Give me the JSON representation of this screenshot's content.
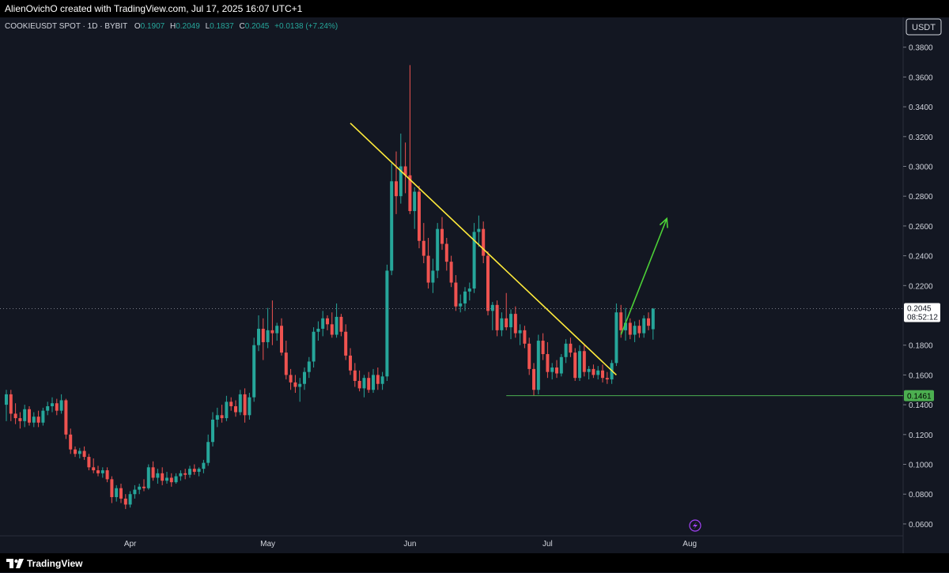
{
  "header": {
    "attribution": "AlienOvichO created with TradingView.com, Jul 17, 2025 16:07 UTC+1"
  },
  "legend": {
    "symbol": "COOKIEUSDT SPOT · 1D · BYBIT",
    "o_label": "O",
    "o_value": "0.1907",
    "h_label": "H",
    "h_value": "0.2049",
    "l_label": "L",
    "l_value": "0.1837",
    "c_label": "C",
    "c_value": "0.2045",
    "change": "+0.0138 (+7.24%)"
  },
  "currency_button": "USDT",
  "footer": {
    "brand": "TradingView"
  },
  "colors": {
    "up": "#26a69a",
    "down": "#ef5350",
    "trendline": "#ffeb3b",
    "support": "#4caf50",
    "arrow": "#4cd137",
    "background": "#131722",
    "text": "#d1d4dc"
  },
  "icons": {
    "flash": "lightning-icon",
    "logo": "tradingview-logo-icon"
  },
  "chart_data": {
    "type": "candlestick",
    "ylim": [
      0.052,
      0.4
    ],
    "yticks": [
      "0.3800",
      "0.3600",
      "0.3400",
      "0.3200",
      "0.3000",
      "0.2800",
      "0.2600",
      "0.2400",
      "0.2200",
      "0.1800",
      "0.1600",
      "0.1400",
      "0.1200",
      "0.1000",
      "0.0800",
      "0.0600"
    ],
    "xticks": [
      {
        "label": "Apr",
        "date": "2025-04-01"
      },
      {
        "label": "May",
        "date": "2025-05-01"
      },
      {
        "label": "Jun",
        "date": "2025-06-01"
      },
      {
        "label": "Jul",
        "date": "2025-07-01"
      },
      {
        "label": "Aug",
        "date": "2025-08-01"
      }
    ],
    "last_price": {
      "value": 0.2045,
      "label": "0.2045",
      "countdown": "08:52:12"
    },
    "support": {
      "value": 0.1461,
      "label": "0.1461",
      "from_date": "2025-06-22"
    },
    "trendline": {
      "from": {
        "date": "2025-05-19",
        "price": 0.329
      },
      "to": {
        "date": "2025-07-16",
        "price": 0.16
      }
    },
    "projection_arrow": {
      "from": {
        "date": "2025-07-17",
        "price": 0.187
      },
      "to": {
        "date": "2025-07-27",
        "price": 0.265
      }
    },
    "candles": [
      {
        "date": "2025-03-05",
        "o": 0.14,
        "h": 0.15,
        "l": 0.129,
        "c": 0.147
      },
      {
        "date": "2025-03-06",
        "o": 0.147,
        "h": 0.15,
        "l": 0.129,
        "c": 0.134
      },
      {
        "date": "2025-03-07",
        "o": 0.134,
        "h": 0.141,
        "l": 0.127,
        "c": 0.131
      },
      {
        "date": "2025-03-08",
        "o": 0.131,
        "h": 0.135,
        "l": 0.124,
        "c": 0.129
      },
      {
        "date": "2025-03-09",
        "o": 0.129,
        "h": 0.14,
        "l": 0.125,
        "c": 0.137
      },
      {
        "date": "2025-03-10",
        "o": 0.137,
        "h": 0.139,
        "l": 0.126,
        "c": 0.128
      },
      {
        "date": "2025-03-11",
        "o": 0.128,
        "h": 0.135,
        "l": 0.125,
        "c": 0.132
      },
      {
        "date": "2025-03-12",
        "o": 0.132,
        "h": 0.136,
        "l": 0.125,
        "c": 0.128
      },
      {
        "date": "2025-03-13",
        "o": 0.128,
        "h": 0.138,
        "l": 0.126,
        "c": 0.136
      },
      {
        "date": "2025-03-14",
        "o": 0.136,
        "h": 0.142,
        "l": 0.133,
        "c": 0.139
      },
      {
        "date": "2025-03-15",
        "o": 0.139,
        "h": 0.145,
        "l": 0.135,
        "c": 0.141
      },
      {
        "date": "2025-03-16",
        "o": 0.141,
        "h": 0.144,
        "l": 0.133,
        "c": 0.136
      },
      {
        "date": "2025-03-17",
        "o": 0.136,
        "h": 0.147,
        "l": 0.134,
        "c": 0.143
      },
      {
        "date": "2025-03-18",
        "o": 0.143,
        "h": 0.144,
        "l": 0.117,
        "c": 0.12
      },
      {
        "date": "2025-03-19",
        "o": 0.12,
        "h": 0.124,
        "l": 0.107,
        "c": 0.11
      },
      {
        "date": "2025-03-20",
        "o": 0.11,
        "h": 0.112,
        "l": 0.105,
        "c": 0.107
      },
      {
        "date": "2025-03-21",
        "o": 0.107,
        "h": 0.111,
        "l": 0.104,
        "c": 0.109
      },
      {
        "date": "2025-03-22",
        "o": 0.109,
        "h": 0.112,
        "l": 0.103,
        "c": 0.105
      },
      {
        "date": "2025-03-23",
        "o": 0.105,
        "h": 0.107,
        "l": 0.096,
        "c": 0.098
      },
      {
        "date": "2025-03-24",
        "o": 0.098,
        "h": 0.104,
        "l": 0.094,
        "c": 0.096
      },
      {
        "date": "2025-03-25",
        "o": 0.096,
        "h": 0.099,
        "l": 0.092,
        "c": 0.094
      },
      {
        "date": "2025-03-26",
        "o": 0.094,
        "h": 0.098,
        "l": 0.091,
        "c": 0.096
      },
      {
        "date": "2025-03-27",
        "o": 0.096,
        "h": 0.098,
        "l": 0.088,
        "c": 0.09
      },
      {
        "date": "2025-03-28",
        "o": 0.09,
        "h": 0.092,
        "l": 0.074,
        "c": 0.078
      },
      {
        "date": "2025-03-29",
        "o": 0.078,
        "h": 0.086,
        "l": 0.075,
        "c": 0.084
      },
      {
        "date": "2025-03-30",
        "o": 0.084,
        "h": 0.087,
        "l": 0.074,
        "c": 0.077
      },
      {
        "date": "2025-03-31",
        "o": 0.077,
        "h": 0.08,
        "l": 0.07,
        "c": 0.073
      },
      {
        "date": "2025-04-01",
        "o": 0.073,
        "h": 0.082,
        "l": 0.071,
        "c": 0.08
      },
      {
        "date": "2025-04-02",
        "o": 0.08,
        "h": 0.086,
        "l": 0.077,
        "c": 0.083
      },
      {
        "date": "2025-04-03",
        "o": 0.083,
        "h": 0.087,
        "l": 0.08,
        "c": 0.085
      },
      {
        "date": "2025-04-04",
        "o": 0.085,
        "h": 0.09,
        "l": 0.082,
        "c": 0.084
      },
      {
        "date": "2025-04-05",
        "o": 0.084,
        "h": 0.1,
        "l": 0.083,
        "c": 0.098
      },
      {
        "date": "2025-04-06",
        "o": 0.098,
        "h": 0.102,
        "l": 0.089,
        "c": 0.091
      },
      {
        "date": "2025-04-07",
        "o": 0.091,
        "h": 0.097,
        "l": 0.087,
        "c": 0.094
      },
      {
        "date": "2025-04-08",
        "o": 0.094,
        "h": 0.098,
        "l": 0.086,
        "c": 0.089
      },
      {
        "date": "2025-04-09",
        "o": 0.089,
        "h": 0.095,
        "l": 0.087,
        "c": 0.091
      },
      {
        "date": "2025-04-10",
        "o": 0.091,
        "h": 0.094,
        "l": 0.085,
        "c": 0.088
      },
      {
        "date": "2025-04-11",
        "o": 0.088,
        "h": 0.094,
        "l": 0.087,
        "c": 0.092
      },
      {
        "date": "2025-04-12",
        "o": 0.092,
        "h": 0.096,
        "l": 0.089,
        "c": 0.094
      },
      {
        "date": "2025-04-13",
        "o": 0.094,
        "h": 0.097,
        "l": 0.09,
        "c": 0.093
      },
      {
        "date": "2025-04-14",
        "o": 0.093,
        "h": 0.099,
        "l": 0.091,
        "c": 0.097
      },
      {
        "date": "2025-04-15",
        "o": 0.097,
        "h": 0.1,
        "l": 0.093,
        "c": 0.095
      },
      {
        "date": "2025-04-16",
        "o": 0.095,
        "h": 0.098,
        "l": 0.092,
        "c": 0.097
      },
      {
        "date": "2025-04-17",
        "o": 0.097,
        "h": 0.103,
        "l": 0.094,
        "c": 0.101
      },
      {
        "date": "2025-04-18",
        "o": 0.101,
        "h": 0.12,
        "l": 0.099,
        "c": 0.115
      },
      {
        "date": "2025-04-19",
        "o": 0.115,
        "h": 0.135,
        "l": 0.112,
        "c": 0.13
      },
      {
        "date": "2025-04-20",
        "o": 0.13,
        "h": 0.138,
        "l": 0.125,
        "c": 0.133
      },
      {
        "date": "2025-04-21",
        "o": 0.133,
        "h": 0.14,
        "l": 0.128,
        "c": 0.131
      },
      {
        "date": "2025-04-22",
        "o": 0.131,
        "h": 0.146,
        "l": 0.129,
        "c": 0.142
      },
      {
        "date": "2025-04-23",
        "o": 0.142,
        "h": 0.145,
        "l": 0.136,
        "c": 0.139
      },
      {
        "date": "2025-04-24",
        "o": 0.139,
        "h": 0.143,
        "l": 0.132,
        "c": 0.135
      },
      {
        "date": "2025-04-25",
        "o": 0.135,
        "h": 0.15,
        "l": 0.133,
        "c": 0.147
      },
      {
        "date": "2025-04-26",
        "o": 0.147,
        "h": 0.151,
        "l": 0.128,
        "c": 0.133
      },
      {
        "date": "2025-04-27",
        "o": 0.133,
        "h": 0.148,
        "l": 0.13,
        "c": 0.145
      },
      {
        "date": "2025-04-28",
        "o": 0.145,
        "h": 0.185,
        "l": 0.142,
        "c": 0.18
      },
      {
        "date": "2025-04-29",
        "o": 0.18,
        "h": 0.2,
        "l": 0.176,
        "c": 0.191
      },
      {
        "date": "2025-04-30",
        "o": 0.191,
        "h": 0.198,
        "l": 0.17,
        "c": 0.182
      },
      {
        "date": "2025-05-01",
        "o": 0.182,
        "h": 0.205,
        "l": 0.178,
        "c": 0.19
      },
      {
        "date": "2025-05-02",
        "o": 0.19,
        "h": 0.21,
        "l": 0.18,
        "c": 0.188
      },
      {
        "date": "2025-05-03",
        "o": 0.188,
        "h": 0.195,
        "l": 0.183,
        "c": 0.193
      },
      {
        "date": "2025-05-04",
        "o": 0.193,
        "h": 0.198,
        "l": 0.173,
        "c": 0.175
      },
      {
        "date": "2025-05-05",
        "o": 0.175,
        "h": 0.183,
        "l": 0.157,
        "c": 0.16
      },
      {
        "date": "2025-05-06",
        "o": 0.16,
        "h": 0.164,
        "l": 0.15,
        "c": 0.155
      },
      {
        "date": "2025-05-07",
        "o": 0.155,
        "h": 0.16,
        "l": 0.148,
        "c": 0.152
      },
      {
        "date": "2025-05-08",
        "o": 0.152,
        "h": 0.158,
        "l": 0.142,
        "c": 0.154
      },
      {
        "date": "2025-05-09",
        "o": 0.154,
        "h": 0.165,
        "l": 0.15,
        "c": 0.162
      },
      {
        "date": "2025-05-10",
        "o": 0.162,
        "h": 0.172,
        "l": 0.158,
        "c": 0.169
      },
      {
        "date": "2025-05-11",
        "o": 0.169,
        "h": 0.192,
        "l": 0.165,
        "c": 0.189
      },
      {
        "date": "2025-05-12",
        "o": 0.189,
        "h": 0.196,
        "l": 0.183,
        "c": 0.191
      },
      {
        "date": "2025-05-13",
        "o": 0.191,
        "h": 0.203,
        "l": 0.186,
        "c": 0.198
      },
      {
        "date": "2025-05-14",
        "o": 0.198,
        "h": 0.2,
        "l": 0.19,
        "c": 0.194
      },
      {
        "date": "2025-05-15",
        "o": 0.194,
        "h": 0.202,
        "l": 0.185,
        "c": 0.187
      },
      {
        "date": "2025-05-16",
        "o": 0.187,
        "h": 0.208,
        "l": 0.185,
        "c": 0.199
      },
      {
        "date": "2025-05-17",
        "o": 0.199,
        "h": 0.201,
        "l": 0.186,
        "c": 0.189
      },
      {
        "date": "2025-05-18",
        "o": 0.189,
        "h": 0.194,
        "l": 0.17,
        "c": 0.173
      },
      {
        "date": "2025-05-19",
        "o": 0.173,
        "h": 0.178,
        "l": 0.16,
        "c": 0.163
      },
      {
        "date": "2025-05-20",
        "o": 0.163,
        "h": 0.168,
        "l": 0.152,
        "c": 0.156
      },
      {
        "date": "2025-05-21",
        "o": 0.156,
        "h": 0.163,
        "l": 0.149,
        "c": 0.151
      },
      {
        "date": "2025-05-22",
        "o": 0.151,
        "h": 0.16,
        "l": 0.145,
        "c": 0.158
      },
      {
        "date": "2025-05-23",
        "o": 0.158,
        "h": 0.162,
        "l": 0.148,
        "c": 0.15
      },
      {
        "date": "2025-05-24",
        "o": 0.15,
        "h": 0.164,
        "l": 0.148,
        "c": 0.16
      },
      {
        "date": "2025-05-25",
        "o": 0.16,
        "h": 0.165,
        "l": 0.15,
        "c": 0.154
      },
      {
        "date": "2025-05-26",
        "o": 0.154,
        "h": 0.162,
        "l": 0.15,
        "c": 0.159
      },
      {
        "date": "2025-05-27",
        "o": 0.159,
        "h": 0.234,
        "l": 0.156,
        "c": 0.23
      },
      {
        "date": "2025-05-28",
        "o": 0.23,
        "h": 0.302,
        "l": 0.227,
        "c": 0.29
      },
      {
        "date": "2025-05-29",
        "o": 0.29,
        "h": 0.31,
        "l": 0.268,
        "c": 0.28
      },
      {
        "date": "2025-05-30",
        "o": 0.28,
        "h": 0.322,
        "l": 0.275,
        "c": 0.3
      },
      {
        "date": "2025-05-31",
        "o": 0.3,
        "h": 0.316,
        "l": 0.282,
        "c": 0.294
      },
      {
        "date": "2025-06-01",
        "o": 0.294,
        "h": 0.368,
        "l": 0.268,
        "c": 0.27
      },
      {
        "date": "2025-06-02",
        "o": 0.27,
        "h": 0.286,
        "l": 0.258,
        "c": 0.283
      },
      {
        "date": "2025-06-03",
        "o": 0.283,
        "h": 0.287,
        "l": 0.245,
        "c": 0.25
      },
      {
        "date": "2025-06-04",
        "o": 0.25,
        "h": 0.262,
        "l": 0.235,
        "c": 0.24
      },
      {
        "date": "2025-06-05",
        "o": 0.24,
        "h": 0.252,
        "l": 0.218,
        "c": 0.222
      },
      {
        "date": "2025-06-06",
        "o": 0.222,
        "h": 0.238,
        "l": 0.215,
        "c": 0.23
      },
      {
        "date": "2025-06-07",
        "o": 0.23,
        "h": 0.262,
        "l": 0.225,
        "c": 0.258
      },
      {
        "date": "2025-06-08",
        "o": 0.258,
        "h": 0.266,
        "l": 0.244,
        "c": 0.248
      },
      {
        "date": "2025-06-09",
        "o": 0.248,
        "h": 0.252,
        "l": 0.23,
        "c": 0.236
      },
      {
        "date": "2025-06-10",
        "o": 0.236,
        "h": 0.24,
        "l": 0.219,
        "c": 0.222
      },
      {
        "date": "2025-06-11",
        "o": 0.222,
        "h": 0.227,
        "l": 0.203,
        "c": 0.206
      },
      {
        "date": "2025-06-12",
        "o": 0.206,
        "h": 0.214,
        "l": 0.202,
        "c": 0.208
      },
      {
        "date": "2025-06-13",
        "o": 0.208,
        "h": 0.219,
        "l": 0.203,
        "c": 0.216
      },
      {
        "date": "2025-06-14",
        "o": 0.216,
        "h": 0.222,
        "l": 0.21,
        "c": 0.218
      },
      {
        "date": "2025-06-15",
        "o": 0.218,
        "h": 0.262,
        "l": 0.215,
        "c": 0.256
      },
      {
        "date": "2025-06-16",
        "o": 0.256,
        "h": 0.267,
        "l": 0.246,
        "c": 0.258
      },
      {
        "date": "2025-06-17",
        "o": 0.258,
        "h": 0.263,
        "l": 0.235,
        "c": 0.24
      },
      {
        "date": "2025-06-18",
        "o": 0.24,
        "h": 0.243,
        "l": 0.2,
        "c": 0.203
      },
      {
        "date": "2025-06-19",
        "o": 0.203,
        "h": 0.209,
        "l": 0.19,
        "c": 0.207
      },
      {
        "date": "2025-06-20",
        "o": 0.207,
        "h": 0.21,
        "l": 0.186,
        "c": 0.19
      },
      {
        "date": "2025-06-21",
        "o": 0.19,
        "h": 0.202,
        "l": 0.186,
        "c": 0.198
      },
      {
        "date": "2025-06-22",
        "o": 0.198,
        "h": 0.215,
        "l": 0.19,
        "c": 0.192
      },
      {
        "date": "2025-06-23",
        "o": 0.192,
        "h": 0.204,
        "l": 0.184,
        "c": 0.201
      },
      {
        "date": "2025-06-24",
        "o": 0.201,
        "h": 0.206,
        "l": 0.185,
        "c": 0.188
      },
      {
        "date": "2025-06-25",
        "o": 0.188,
        "h": 0.194,
        "l": 0.18,
        "c": 0.19
      },
      {
        "date": "2025-06-26",
        "o": 0.19,
        "h": 0.193,
        "l": 0.178,
        "c": 0.181
      },
      {
        "date": "2025-06-27",
        "o": 0.181,
        "h": 0.185,
        "l": 0.16,
        "c": 0.164
      },
      {
        "date": "2025-06-28",
        "o": 0.164,
        "h": 0.168,
        "l": 0.146,
        "c": 0.15
      },
      {
        "date": "2025-06-29",
        "o": 0.15,
        "h": 0.187,
        "l": 0.147,
        "c": 0.183
      },
      {
        "date": "2025-06-30",
        "o": 0.183,
        "h": 0.188,
        "l": 0.17,
        "c": 0.174
      },
      {
        "date": "2025-07-01",
        "o": 0.174,
        "h": 0.182,
        "l": 0.158,
        "c": 0.162
      },
      {
        "date": "2025-07-02",
        "o": 0.162,
        "h": 0.168,
        "l": 0.157,
        "c": 0.165
      },
      {
        "date": "2025-07-03",
        "o": 0.165,
        "h": 0.17,
        "l": 0.158,
        "c": 0.161
      },
      {
        "date": "2025-07-04",
        "o": 0.161,
        "h": 0.174,
        "l": 0.159,
        "c": 0.172
      },
      {
        "date": "2025-07-05",
        "o": 0.172,
        "h": 0.184,
        "l": 0.168,
        "c": 0.181
      },
      {
        "date": "2025-07-06",
        "o": 0.181,
        "h": 0.185,
        "l": 0.172,
        "c": 0.175
      },
      {
        "date": "2025-07-07",
        "o": 0.175,
        "h": 0.178,
        "l": 0.156,
        "c": 0.158
      },
      {
        "date": "2025-07-08",
        "o": 0.158,
        "h": 0.18,
        "l": 0.156,
        "c": 0.176
      },
      {
        "date": "2025-07-09",
        "o": 0.176,
        "h": 0.18,
        "l": 0.159,
        "c": 0.162
      },
      {
        "date": "2025-07-10",
        "o": 0.162,
        "h": 0.166,
        "l": 0.157,
        "c": 0.164
      },
      {
        "date": "2025-07-11",
        "o": 0.164,
        "h": 0.167,
        "l": 0.158,
        "c": 0.16
      },
      {
        "date": "2025-07-12",
        "o": 0.16,
        "h": 0.166,
        "l": 0.157,
        "c": 0.163
      },
      {
        "date": "2025-07-13",
        "o": 0.163,
        "h": 0.167,
        "l": 0.155,
        "c": 0.158
      },
      {
        "date": "2025-07-14",
        "o": 0.158,
        "h": 0.162,
        "l": 0.154,
        "c": 0.157
      },
      {
        "date": "2025-07-15",
        "o": 0.157,
        "h": 0.17,
        "l": 0.154,
        "c": 0.168
      },
      {
        "date": "2025-07-16",
        "o": 0.168,
        "h": 0.208,
        "l": 0.166,
        "c": 0.202
      },
      {
        "date": "2025-07-17",
        "o": 0.202,
        "h": 0.207,
        "l": 0.185,
        "c": 0.19
      },
      {
        "date": "2025-07-18",
        "o": 0.19,
        "h": 0.205,
        "l": 0.183,
        "c": 0.195
      },
      {
        "date": "2025-07-19",
        "o": 0.195,
        "h": 0.198,
        "l": 0.184,
        "c": 0.187
      },
      {
        "date": "2025-07-20",
        "o": 0.187,
        "h": 0.196,
        "l": 0.182,
        "c": 0.193
      },
      {
        "date": "2025-07-21",
        "o": 0.193,
        "h": 0.197,
        "l": 0.185,
        "c": 0.188
      },
      {
        "date": "2025-07-22",
        "o": 0.188,
        "h": 0.2,
        "l": 0.185,
        "c": 0.198
      },
      {
        "date": "2025-07-23",
        "o": 0.198,
        "h": 0.202,
        "l": 0.19,
        "c": 0.193
      },
      {
        "date": "2025-07-24",
        "o": 0.1907,
        "h": 0.2049,
        "l": 0.1837,
        "c": 0.2045
      }
    ]
  }
}
